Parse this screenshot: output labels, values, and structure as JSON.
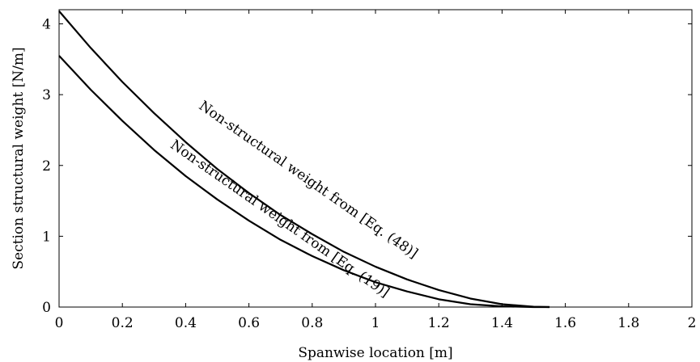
{
  "chart_data": {
    "type": "line",
    "title": "",
    "xlabel": "Spanwise location [m]",
    "ylabel": "Section structural weight [N/m]",
    "xlim": [
      0,
      2
    ],
    "ylim": [
      0,
      4.2
    ],
    "xticks": [
      0,
      0.2,
      0.4,
      0.6,
      0.8,
      1,
      1.2,
      1.4,
      1.6,
      1.8,
      2
    ],
    "xtick_labels": [
      "0",
      "0.2",
      "0.4",
      "0.6",
      "0.8",
      "1",
      "1.2",
      "1.4",
      "1.6",
      "1.8",
      "2"
    ],
    "yticks": [
      0,
      1,
      2,
      3,
      4
    ],
    "ytick_labels": [
      "0",
      "1",
      "2",
      "3",
      "4"
    ],
    "grid": false,
    "legend": "none",
    "series": [
      {
        "label": "Non-structural weight from [Eq. (48)]",
        "color": "#000000",
        "x": [
          0,
          0.1,
          0.2,
          0.3,
          0.4,
          0.5,
          0.6,
          0.7,
          0.8,
          0.9,
          1.0,
          1.1,
          1.2,
          1.3,
          1.4,
          1.5,
          1.55
        ],
        "y": [
          4.18,
          3.66,
          3.18,
          2.74,
          2.33,
          1.95,
          1.61,
          1.3,
          1.03,
          0.78,
          0.57,
          0.39,
          0.24,
          0.12,
          0.04,
          0.005,
          0.0
        ]
      },
      {
        "label": "Non-structural weight from [Eq. (19)]",
        "color": "#000000",
        "x": [
          0,
          0.1,
          0.2,
          0.3,
          0.4,
          0.5,
          0.6,
          0.7,
          0.8,
          0.9,
          1.0,
          1.1,
          1.2,
          1.3,
          1.4,
          1.5,
          1.55
        ],
        "y": [
          3.55,
          3.07,
          2.63,
          2.22,
          1.85,
          1.52,
          1.22,
          0.95,
          0.72,
          0.52,
          0.35,
          0.22,
          0.11,
          0.04,
          0.01,
          0.0,
          0.0
        ]
      }
    ],
    "annotations": [
      {
        "text": "Non-structural weight from [Eq. (48)]",
        "series": 0,
        "x": 0.78,
        "y": 1.75,
        "angle": 35
      },
      {
        "text": "Non-structural weight from [Eq. (19)]",
        "series": 1,
        "x": 0.69,
        "y": 1.2,
        "angle": 35
      }
    ]
  }
}
